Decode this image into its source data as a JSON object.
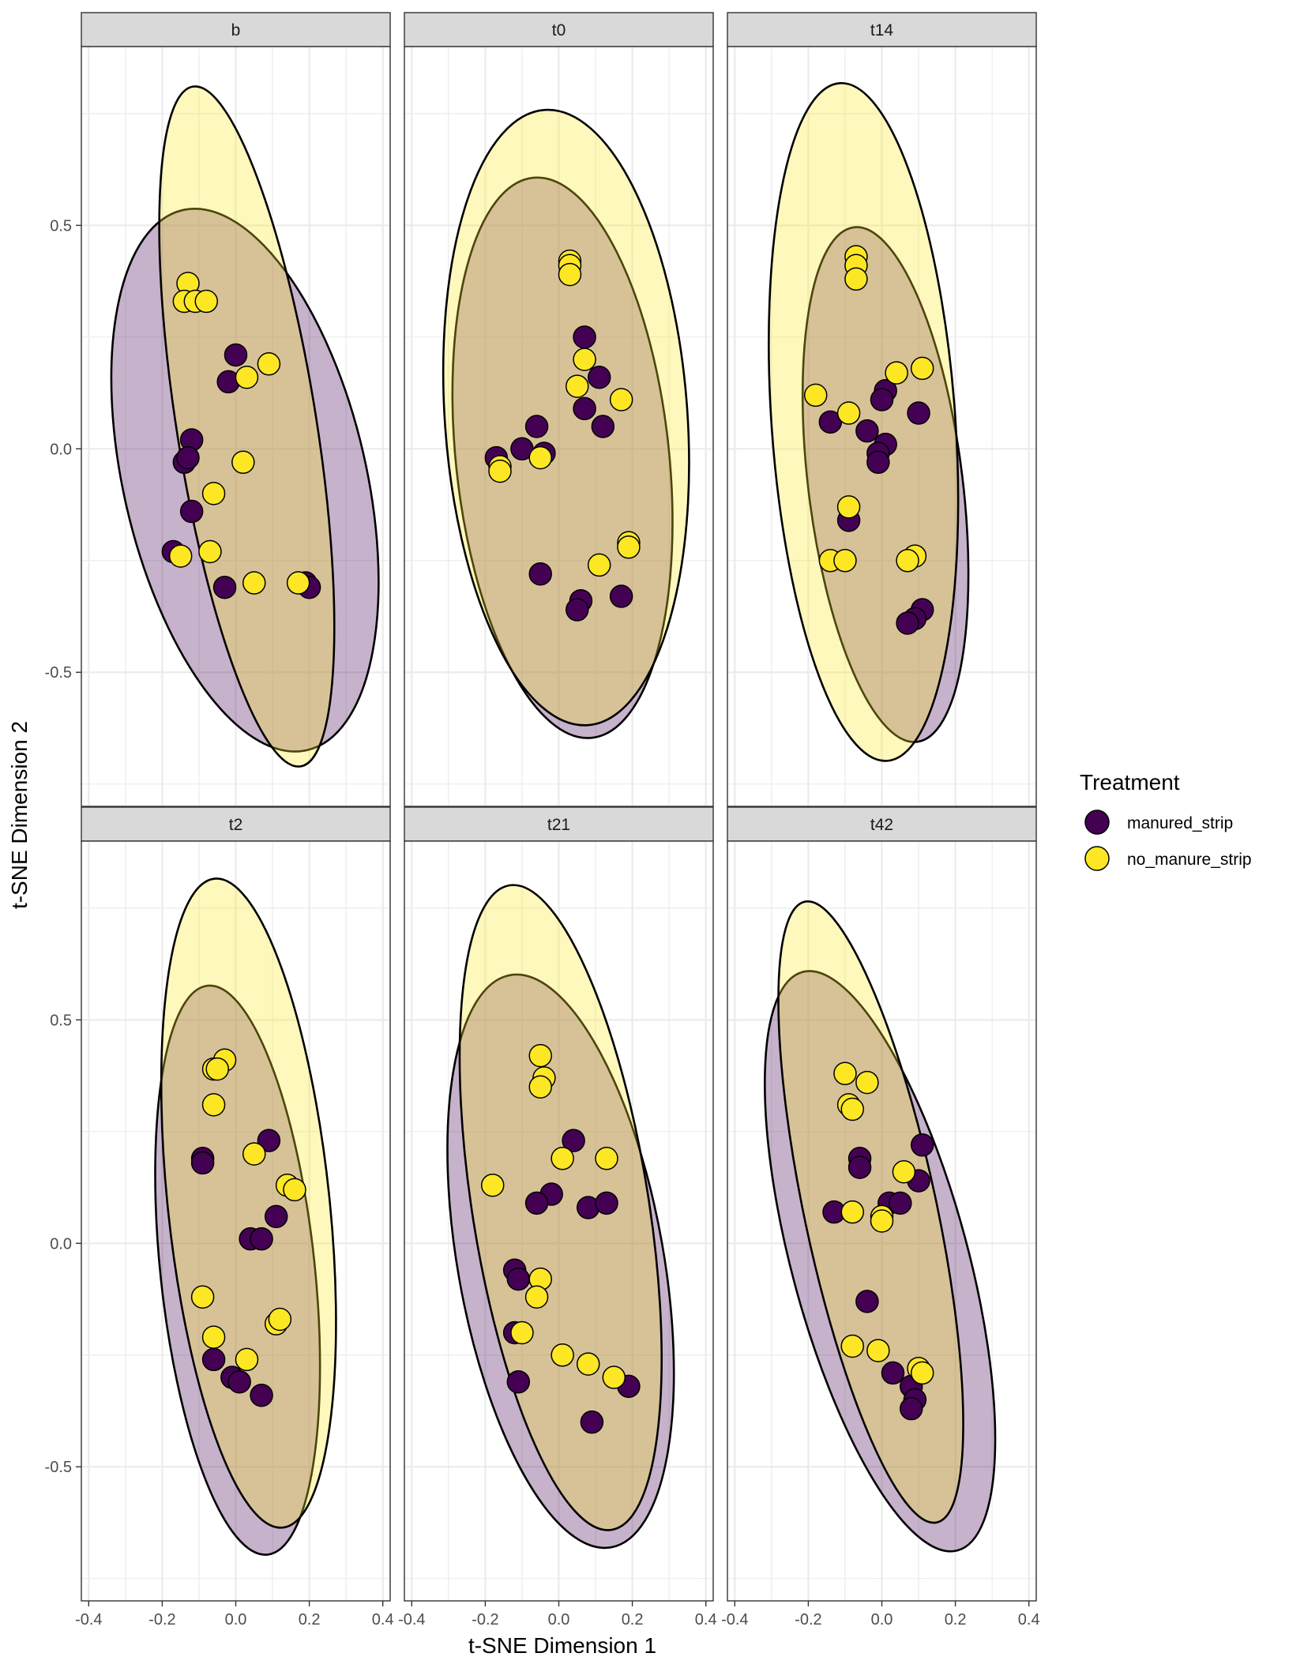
{
  "chart_data": {
    "type": "scatter",
    "xlabel": "t-SNE Dimension 1",
    "ylabel": "t-SNE Dimension 2",
    "xlim": [
      -0.42,
      0.42
    ],
    "ylim": [
      -0.8,
      0.9
    ],
    "x_ticks": [
      -0.4,
      -0.2,
      0.0,
      0.2,
      0.4
    ],
    "x_tick_labels": [
      "-0.4",
      "-0.2",
      "0.0",
      "0.2",
      "0.4"
    ],
    "y_ticks": [
      -0.5,
      0.0,
      0.5
    ],
    "y_tick_labels": [
      "-0.5",
      "0.0",
      "0.5"
    ],
    "grid": true,
    "facet_layout": "2 rows x 3 columns",
    "legend": {
      "title": "Treatment",
      "position": "right",
      "entries": [
        {
          "name": "manured_strip",
          "color": "#440154"
        },
        {
          "name": "no_manure_strip",
          "color": "#FDE725"
        }
      ]
    },
    "colors": {
      "manured_strip": "#440154",
      "no_manure_strip": "#FDE725",
      "strip": "#D9D9D9",
      "grid": "#EBEBEB"
    },
    "ellipses": "95% confidence ellipse per treatment",
    "panels": [
      {
        "facet": "b",
        "groups": [
          {
            "name": "manured_strip",
            "points": [
              [
                0.0,
                0.21
              ],
              [
                -0.02,
                0.15
              ],
              [
                -0.12,
                0.02
              ],
              [
                -0.14,
                -0.03
              ],
              [
                -0.13,
                -0.02
              ],
              [
                -0.12,
                -0.14
              ],
              [
                -0.17,
                -0.23
              ],
              [
                -0.03,
                -0.31
              ],
              [
                0.19,
                -0.3
              ],
              [
                0.2,
                -0.31
              ]
            ],
            "ellipse": {
              "cx": 0.025,
              "cy": -0.07,
              "rx": 0.33,
              "ry": 0.62,
              "angle": -13
            }
          },
          {
            "name": "no_manure_strip",
            "points": [
              [
                -0.13,
                0.37
              ],
              [
                -0.14,
                0.33
              ],
              [
                -0.11,
                0.33
              ],
              [
                -0.08,
                0.33
              ],
              [
                0.09,
                0.19
              ],
              [
                0.03,
                0.16
              ],
              [
                0.02,
                -0.03
              ],
              [
                -0.06,
                -0.1
              ],
              [
                -0.07,
                -0.23
              ],
              [
                -0.15,
                -0.24
              ],
              [
                0.05,
                -0.3
              ],
              [
                0.17,
                -0.3
              ]
            ],
            "ellipse": {
              "cx": 0.03,
              "cy": 0.05,
              "rx": 0.19,
              "ry": 0.77,
              "angle": -9
            }
          }
        ]
      },
      {
        "facet": "t0",
        "groups": [
          {
            "name": "manured_strip",
            "points": [
              [
                0.07,
                0.25
              ],
              [
                0.11,
                0.16
              ],
              [
                0.07,
                0.09
              ],
              [
                0.12,
                0.05
              ],
              [
                -0.06,
                0.05
              ],
              [
                -0.1,
                0.0
              ],
              [
                -0.04,
                -0.01
              ],
              [
                -0.17,
                -0.02
              ],
              [
                -0.05,
                -0.28
              ],
              [
                0.06,
                -0.34
              ],
              [
                0.05,
                -0.36
              ],
              [
                0.17,
                -0.33
              ]
            ],
            "ellipse": {
              "cx": 0.01,
              "cy": -0.02,
              "rx": 0.29,
              "ry": 0.63,
              "angle": -6
            }
          },
          {
            "name": "no_manure_strip",
            "points": [
              [
                0.03,
                0.42
              ],
              [
                0.03,
                0.41
              ],
              [
                0.03,
                0.39
              ],
              [
                0.07,
                0.2
              ],
              [
                0.05,
                0.14
              ],
              [
                0.17,
                0.11
              ],
              [
                -0.16,
                -0.04
              ],
              [
                -0.16,
                -0.05
              ],
              [
                -0.05,
                -0.02
              ],
              [
                0.11,
                -0.26
              ],
              [
                0.19,
                -0.21
              ],
              [
                0.19,
                -0.22
              ]
            ],
            "ellipse": {
              "cx": 0.02,
              "cy": 0.07,
              "rx": 0.33,
              "ry": 0.69,
              "angle": -4
            }
          }
        ]
      },
      {
        "facet": "t14",
        "groups": [
          {
            "name": "manured_strip",
            "points": [
              [
                0.01,
                0.13
              ],
              [
                0.0,
                0.11
              ],
              [
                0.1,
                0.08
              ],
              [
                -0.14,
                0.06
              ],
              [
                -0.04,
                0.04
              ],
              [
                0.01,
                0.01
              ],
              [
                -0.01,
                -0.01
              ],
              [
                -0.01,
                -0.03
              ],
              [
                -0.09,
                -0.16
              ],
              [
                0.11,
                -0.36
              ],
              [
                0.09,
                -0.38
              ],
              [
                0.07,
                -0.39
              ]
            ],
            "ellipse": {
              "cx": 0.01,
              "cy": -0.08,
              "rx": 0.21,
              "ry": 0.58,
              "angle": -7
            }
          },
          {
            "name": "no_manure_strip",
            "points": [
              [
                -0.07,
                0.43
              ],
              [
                -0.07,
                0.41
              ],
              [
                -0.07,
                0.38
              ],
              [
                0.11,
                0.18
              ],
              [
                0.04,
                0.17
              ],
              [
                -0.09,
                0.08
              ],
              [
                -0.18,
                0.12
              ],
              [
                -0.09,
                -0.13
              ],
              [
                -0.14,
                -0.25
              ],
              [
                -0.1,
                -0.25
              ],
              [
                0.09,
                -0.24
              ],
              [
                0.07,
                -0.25
              ]
            ],
            "ellipse": {
              "cx": -0.05,
              "cy": 0.06,
              "rx": 0.25,
              "ry": 0.76,
              "angle": -4
            }
          }
        ]
      },
      {
        "facet": "t2",
        "groups": [
          {
            "name": "manured_strip",
            "points": [
              [
                0.09,
                0.23
              ],
              [
                -0.09,
                0.19
              ],
              [
                -0.09,
                0.18
              ],
              [
                0.11,
                0.06
              ],
              [
                0.04,
                0.01
              ],
              [
                0.07,
                0.01
              ],
              [
                -0.06,
                -0.26
              ],
              [
                -0.01,
                -0.3
              ],
              [
                0.01,
                -0.31
              ],
              [
                0.07,
                -0.34
              ]
            ],
            "ellipse": {
              "cx": 0.005,
              "cy": -0.06,
              "rx": 0.21,
              "ry": 0.64,
              "angle": -6
            }
          },
          {
            "name": "no_manure_strip",
            "points": [
              [
                -0.03,
                0.41
              ],
              [
                -0.06,
                0.39
              ],
              [
                -0.05,
                0.39
              ],
              [
                -0.06,
                0.31
              ],
              [
                0.05,
                0.2
              ],
              [
                0.14,
                0.13
              ],
              [
                0.16,
                0.12
              ],
              [
                -0.09,
                -0.12
              ],
              [
                -0.06,
                -0.21
              ],
              [
                0.11,
                -0.18
              ],
              [
                0.12,
                -0.17
              ],
              [
                0.03,
                -0.26
              ]
            ],
            "ellipse": {
              "cx": 0.035,
              "cy": 0.09,
              "rx": 0.22,
              "ry": 0.73,
              "angle": -6
            }
          }
        ]
      },
      {
        "facet": "t21",
        "groups": [
          {
            "name": "manured_strip",
            "points": [
              [
                0.04,
                0.23
              ],
              [
                -0.02,
                0.11
              ],
              [
                -0.06,
                0.09
              ],
              [
                0.08,
                0.08
              ],
              [
                0.13,
                0.09
              ],
              [
                -0.12,
                -0.06
              ],
              [
                -0.11,
                -0.08
              ],
              [
                -0.12,
                -0.2
              ],
              [
                -0.11,
                -0.31
              ],
              [
                0.09,
                -0.4
              ],
              [
                0.19,
                -0.32
              ]
            ],
            "ellipse": {
              "cx": 0.005,
              "cy": -0.04,
              "rx": 0.28,
              "ry": 0.65,
              "angle": -10
            }
          },
          {
            "name": "no_manure_strip",
            "points": [
              [
                -0.05,
                0.42
              ],
              [
                -0.04,
                0.37
              ],
              [
                -0.05,
                0.35
              ],
              [
                0.01,
                0.19
              ],
              [
                0.13,
                0.19
              ],
              [
                -0.18,
                0.13
              ],
              [
                -0.05,
                -0.08
              ],
              [
                -0.06,
                -0.12
              ],
              [
                -0.1,
                -0.2
              ],
              [
                0.01,
                -0.25
              ],
              [
                0.08,
                -0.27
              ],
              [
                0.15,
                -0.3
              ]
            ],
            "ellipse": {
              "cx": 0.005,
              "cy": 0.08,
              "rx": 0.24,
              "ry": 0.73,
              "angle": -9
            }
          }
        ]
      },
      {
        "facet": "t42",
        "groups": [
          {
            "name": "manured_strip",
            "points": [
              [
                0.11,
                0.22
              ],
              [
                -0.06,
                0.19
              ],
              [
                -0.06,
                0.17
              ],
              [
                0.1,
                0.14
              ],
              [
                0.02,
                0.09
              ],
              [
                0.05,
                0.09
              ],
              [
                -0.13,
                0.07
              ],
              [
                -0.04,
                -0.13
              ],
              [
                0.03,
                -0.29
              ],
              [
                0.08,
                -0.32
              ],
              [
                0.09,
                -0.35
              ],
              [
                0.08,
                -0.37
              ]
            ],
            "ellipse": {
              "cx": -0.005,
              "cy": -0.04,
              "rx": 0.24,
              "ry": 0.67,
              "angle": -15
            }
          },
          {
            "name": "no_manure_strip",
            "points": [
              [
                -0.1,
                0.38
              ],
              [
                -0.04,
                0.36
              ],
              [
                -0.09,
                0.31
              ],
              [
                -0.08,
                0.3
              ],
              [
                0.06,
                0.16
              ],
              [
                0.0,
                0.06
              ],
              [
                0.0,
                0.05
              ],
              [
                -0.08,
                0.07
              ],
              [
                -0.08,
                -0.23
              ],
              [
                -0.01,
                -0.24
              ],
              [
                0.1,
                -0.28
              ],
              [
                0.11,
                -0.29
              ]
            ],
            "ellipse": {
              "cx": -0.03,
              "cy": 0.07,
              "rx": 0.18,
              "ry": 0.71,
              "angle": -12
            }
          }
        ]
      }
    ]
  }
}
